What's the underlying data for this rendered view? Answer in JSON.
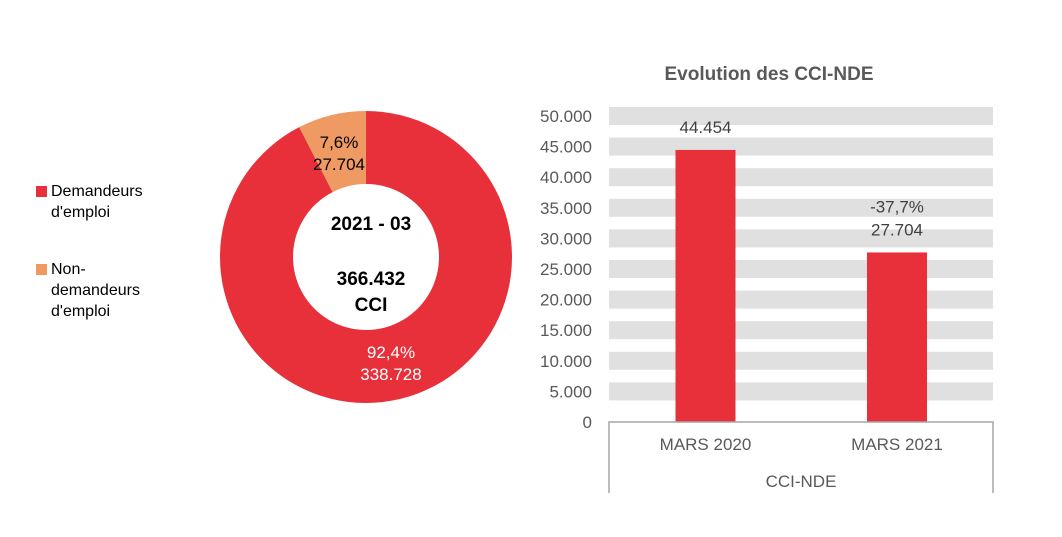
{
  "chart_data": [
    {
      "type": "pie",
      "subtype": "donut",
      "center_label": [
        "2021 - 03",
        "366.432",
        "CCI"
      ],
      "legend_position": "left",
      "slices": [
        {
          "name": "Demandeurs d'emploi",
          "value": 338728,
          "value_label": "338.728",
          "percent_label": "92,4%",
          "color": "#E8303A"
        },
        {
          "name": "Non-demandeurs d'emploi",
          "value": 27704,
          "value_label": "27.704",
          "percent_label": "7,6%",
          "color": "#F09A63"
        }
      ]
    },
    {
      "type": "bar",
      "title": "Evolution des CCI-NDE",
      "categories": [
        "MARS 2020",
        "MARS 2021"
      ],
      "group_label": "CCI-NDE",
      "values": [
        44454,
        27704
      ],
      "data_labels": [
        "44.454",
        "27.704"
      ],
      "change_label": "-37,7%",
      "ylim": [
        0,
        50000
      ],
      "yticks": [
        0,
        5000,
        10000,
        15000,
        20000,
        25000,
        30000,
        35000,
        40000,
        45000,
        50000
      ],
      "ytick_labels": [
        "0",
        "5.000",
        "10.000",
        "15.000",
        "20.000",
        "25.000",
        "30.000",
        "35.000",
        "40.000",
        "45.000",
        "50.000"
      ],
      "grid": true,
      "bar_color": "#E8303A",
      "grid_color": "#E0E0E0"
    }
  ]
}
